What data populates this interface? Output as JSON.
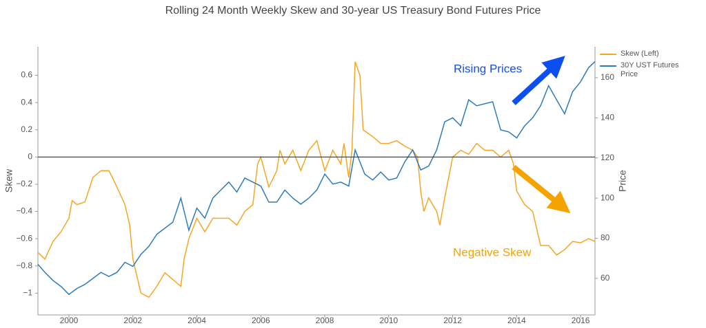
{
  "chart_data": {
    "type": "line",
    "title": "Rolling 24 Month Weekly Skew and 30-year US Treasury Bond Futures Price",
    "ylabel": "Skew",
    "y2label": "Price",
    "annotations": [
      "Rising Prices",
      "Negative Skew"
    ],
    "xlim": [
      1999.03,
      2016.45
    ],
    "xticks": [
      2000,
      2002,
      2004,
      2006,
      2008,
      2010,
      2012,
      2014,
      2016
    ],
    "ylim": [
      -1.16,
      0.81
    ],
    "yticks": [
      {
        "value": -1,
        "label": "−1"
      },
      {
        "value": -0.8,
        "label": "−0.8"
      },
      {
        "value": -0.6,
        "label": "−0.6"
      },
      {
        "value": -0.4,
        "label": "−0.4"
      },
      {
        "value": -0.2,
        "label": "−0.2"
      },
      0,
      0.2,
      0.4,
      0.6
    ],
    "y2lim": [
      41.8,
      175.4
    ],
    "y2ticks": [
      60,
      80,
      100,
      120,
      140,
      160
    ],
    "zeroline": true,
    "series": [
      {
        "name": "Skew (Left)",
        "color": "#f5a623",
        "x": [
          1999.03,
          1999.25,
          1999.5,
          1999.75,
          2000.0,
          2000.1,
          2000.25,
          2000.5,
          2000.75,
          2001.0,
          2001.25,
          2001.5,
          2001.75,
          2001.9,
          2002.0,
          2002.1,
          2002.25,
          2002.5,
          2002.75,
          2003.0,
          2003.25,
          2003.5,
          2003.6,
          2003.75,
          2004.0,
          2004.25,
          2004.5,
          2004.75,
          2005.0,
          2005.25,
          2005.5,
          2005.75,
          2005.9,
          2006.0,
          2006.25,
          2006.5,
          2006.6,
          2006.75,
          2007.0,
          2007.25,
          2007.5,
          2007.75,
          2008.0,
          2008.25,
          2008.5,
          2008.6,
          2008.75,
          2008.85,
          2008.95,
          2009.1,
          2009.2,
          2009.5,
          2009.75,
          2010.0,
          2010.25,
          2010.5,
          2010.75,
          2010.9,
          2011.0,
          2011.1,
          2011.25,
          2011.5,
          2011.6,
          2011.75,
          2012.0,
          2012.25,
          2012.5,
          2012.75,
          2013.0,
          2013.25,
          2013.5,
          2013.75,
          2013.9,
          2014.0,
          2014.25,
          2014.5,
          2014.75,
          2015.0,
          2015.25,
          2015.5,
          2015.75,
          2016.0,
          2016.25,
          2016.45
        ],
        "values": [
          -0.7,
          -0.75,
          -0.62,
          -0.55,
          -0.45,
          -0.32,
          -0.35,
          -0.33,
          -0.15,
          -0.1,
          -0.1,
          -0.22,
          -0.35,
          -0.5,
          -0.75,
          -0.85,
          -1.0,
          -1.03,
          -0.95,
          -0.85,
          -0.9,
          -0.95,
          -0.75,
          -0.6,
          -0.45,
          -0.55,
          -0.45,
          -0.45,
          -0.45,
          -0.5,
          -0.4,
          -0.35,
          -0.05,
          0.0,
          -0.22,
          -0.1,
          0.05,
          -0.05,
          0.05,
          -0.1,
          0.05,
          0.12,
          -0.1,
          0.05,
          -0.05,
          0.1,
          -0.15,
          0.05,
          0.7,
          0.6,
          0.2,
          0.15,
          0.1,
          0.1,
          0.12,
          0.08,
          0.05,
          0.0,
          -0.25,
          -0.4,
          -0.3,
          -0.4,
          -0.5,
          -0.3,
          0.0,
          0.05,
          0.02,
          0.1,
          0.05,
          0.05,
          0.0,
          0.05,
          -0.05,
          -0.25,
          -0.35,
          -0.4,
          -0.65,
          -0.65,
          -0.72,
          -0.68,
          -0.62,
          -0.63,
          -0.6,
          -0.62
        ]
      },
      {
        "name": "30Y UST Futures Price",
        "color": "#2b7bba",
        "axis": "y2",
        "x": [
          1999.03,
          1999.25,
          1999.5,
          1999.75,
          2000.0,
          2000.25,
          2000.5,
          2000.75,
          2001.0,
          2001.25,
          2001.5,
          2001.75,
          2002.0,
          2002.25,
          2002.5,
          2002.75,
          2003.0,
          2003.25,
          2003.5,
          2003.75,
          2004.0,
          2004.25,
          2004.5,
          2004.75,
          2005.0,
          2005.25,
          2005.5,
          2005.75,
          2006.0,
          2006.25,
          2006.5,
          2006.75,
          2007.0,
          2007.25,
          2007.5,
          2007.75,
          2008.0,
          2008.25,
          2008.5,
          2008.75,
          2008.95,
          2009.25,
          2009.5,
          2009.75,
          2010.0,
          2010.25,
          2010.5,
          2010.75,
          2011.0,
          2011.25,
          2011.5,
          2011.75,
          2012.0,
          2012.25,
          2012.5,
          2012.75,
          2013.0,
          2013.25,
          2013.5,
          2013.75,
          2014.0,
          2014.25,
          2014.5,
          2014.75,
          2015.0,
          2015.25,
          2015.5,
          2015.75,
          2016.0,
          2016.25,
          2016.45
        ],
        "values": [
          67,
          63,
          59,
          56,
          52,
          55,
          57,
          60,
          63,
          61,
          63,
          68,
          66,
          72,
          76,
          82,
          85,
          88,
          100,
          84,
          95,
          90,
          100,
          104,
          108,
          103,
          110,
          108,
          106,
          98,
          98,
          104,
          100,
          97,
          100,
          104,
          112,
          107,
          108,
          106,
          124,
          112,
          109,
          113,
          109,
          110,
          118,
          124,
          114,
          116,
          124,
          138,
          140,
          136,
          149,
          146,
          147,
          148,
          134,
          133,
          130,
          136,
          140,
          146,
          156,
          149,
          142,
          153,
          158,
          165,
          168
        ]
      }
    ]
  }
}
